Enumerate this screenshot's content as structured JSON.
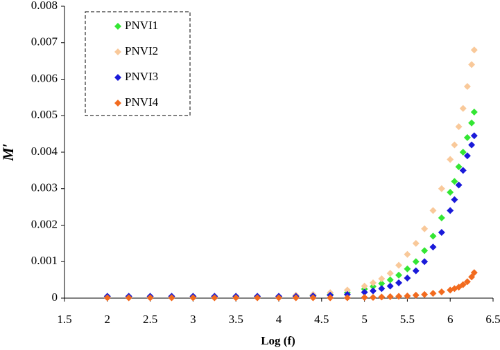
{
  "chart_data": {
    "type": "scatter",
    "x_label": "Log (f)",
    "y_label": "M′",
    "x": [
      2.0,
      2.25,
      2.5,
      2.75,
      3.0,
      3.25,
      3.5,
      3.75,
      4.0,
      4.2,
      4.4,
      4.6,
      4.8,
      5.0,
      5.1,
      5.2,
      5.3,
      5.4,
      5.5,
      5.6,
      5.7,
      5.8,
      5.9,
      6.0,
      6.05,
      6.1,
      6.15,
      6.2,
      6.25,
      6.28
    ],
    "series": [
      {
        "name": "PNVI1",
        "color": "#33e633",
        "values": [
          5e-05,
          5e-05,
          5e-05,
          5e-05,
          5e-05,
          5e-05,
          5e-05,
          5e-05,
          5e-05,
          6e-05,
          7e-05,
          0.0001,
          0.00015,
          0.00025,
          0.00032,
          0.0004,
          0.0005,
          0.00063,
          0.0008,
          0.001,
          0.0013,
          0.0017,
          0.0022,
          0.0029,
          0.0032,
          0.0036,
          0.004,
          0.0044,
          0.0048,
          0.0051
        ]
      },
      {
        "name": "PNVI2",
        "color": "#f9c99a",
        "values": [
          5e-05,
          5e-05,
          5e-05,
          5e-05,
          5e-05,
          5e-05,
          5e-05,
          5e-05,
          5e-05,
          8e-05,
          0.0001,
          0.00015,
          0.00022,
          0.00033,
          0.00042,
          0.00053,
          0.00068,
          0.0009,
          0.0012,
          0.0015,
          0.0019,
          0.0024,
          0.003,
          0.0038,
          0.0042,
          0.0047,
          0.0052,
          0.0058,
          0.0064,
          0.0068
        ]
      },
      {
        "name": "PNVI3",
        "color": "#1a1ad9",
        "values": [
          5e-05,
          5e-05,
          5e-05,
          5e-05,
          5e-05,
          5e-05,
          5e-05,
          5e-05,
          5e-05,
          5e-05,
          6e-05,
          8e-05,
          0.0001,
          0.00016,
          0.0002,
          0.00026,
          0.00033,
          0.00042,
          0.00055,
          0.00075,
          0.001,
          0.0014,
          0.0018,
          0.0024,
          0.0027,
          0.0031,
          0.0035,
          0.0039,
          0.0042,
          0.00445
        ]
      },
      {
        "name": "PNVI4",
        "color": "#f26b1f",
        "values": [
          1e-05,
          1e-05,
          1e-05,
          1e-05,
          1e-05,
          1e-05,
          1e-05,
          1e-05,
          1e-05,
          1e-05,
          1e-05,
          1e-05,
          1e-05,
          2e-05,
          2e-05,
          3e-05,
          4e-05,
          5e-05,
          6e-05,
          8e-05,
          0.0001,
          0.00013,
          0.00017,
          0.00022,
          0.00026,
          0.0003,
          0.00037,
          0.00045,
          0.00058,
          0.0007
        ]
      }
    ],
    "xlim": [
      1.5,
      6.5
    ],
    "xticks": [
      1.5,
      2,
      2.5,
      3,
      3.5,
      4,
      4.5,
      5,
      5.5,
      6,
      6.5
    ],
    "ylim": [
      0,
      0.008
    ],
    "yticks": [
      0,
      0.001,
      0.002,
      0.003,
      0.004,
      0.005,
      0.006,
      0.007,
      0.008
    ],
    "legend": "top-left"
  }
}
